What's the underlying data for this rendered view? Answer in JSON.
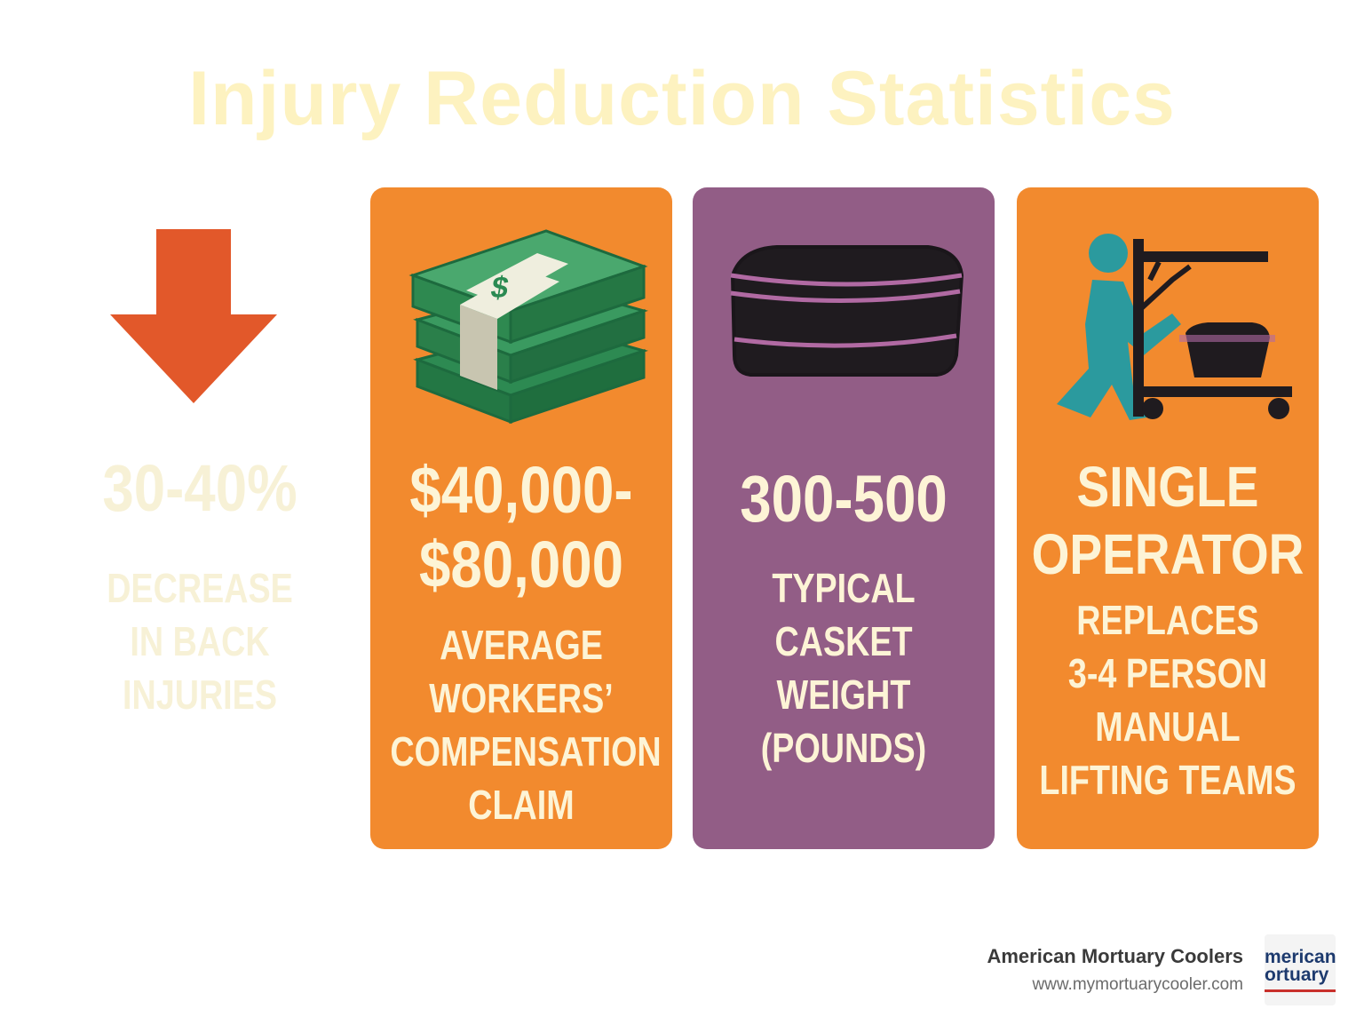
{
  "title": "Injury Reduction Statistics",
  "stats": [
    {
      "value": [
        "30-40%"
      ],
      "description": [
        "DECREASE",
        "IN BACK",
        "INJURIES"
      ]
    },
    {
      "value": [
        "$40,000-",
        "$80,000"
      ],
      "description": [
        "AVERAGE",
        "WORKERS’",
        "COMPENSATION",
        "CLAIM"
      ]
    },
    {
      "value": [
        "300-500"
      ],
      "description": [
        "TYPICAL",
        "CASKET",
        "WEIGHT",
        "(POUNDS)"
      ]
    },
    {
      "value": [
        "SINGLE",
        "OPERATOR"
      ],
      "description": [
        "REPLACES",
        "3-4 PERSON",
        "MANUAL",
        "LIFTING TEAMS"
      ]
    }
  ],
  "footer": {
    "brand": "American Mortuary Coolers",
    "url": "www.mymortuarycooler.com",
    "logo": [
      "merican",
      "ortuary"
    ]
  }
}
